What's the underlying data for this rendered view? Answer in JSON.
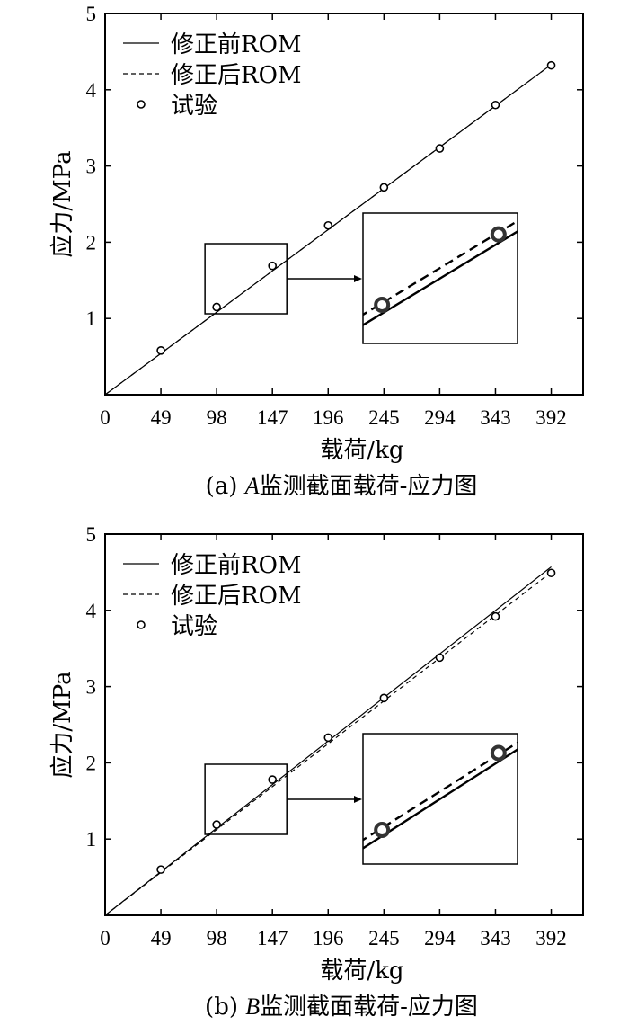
{
  "chart_data": [
    {
      "type": "line",
      "caption_prefix": "(a) ",
      "caption_letter": "A",
      "caption_rest": "监测截面载荷-应力图",
      "xlabel": "载荷/kg",
      "ylabel": "应力/MPa",
      "x_ticks": [
        0,
        49,
        98,
        147,
        196,
        245,
        294,
        343,
        392
      ],
      "y_ticks": [
        1,
        2,
        3,
        4,
        5
      ],
      "xlim": [
        0,
        420
      ],
      "ylim": [
        0,
        5
      ],
      "legend_position": "top-left",
      "series": [
        {
          "name": "修正前ROM",
          "style": "solid",
          "x": [
            0,
            392
          ],
          "y": [
            0,
            4.33
          ]
        },
        {
          "name": "修正后ROM",
          "style": "dashed",
          "x": [
            0,
            392
          ],
          "y": [
            0,
            4.33
          ]
        },
        {
          "name": "试验",
          "style": "marker",
          "x": [
            49,
            98,
            147,
            196,
            245,
            294,
            343,
            392
          ],
          "y": [
            0.58,
            1.15,
            1.69,
            2.22,
            2.72,
            3.23,
            3.8,
            4.32
          ]
        }
      ],
      "zoom": {
        "x_range": [
          98,
          147
        ]
      }
    },
    {
      "type": "line",
      "caption_prefix": "(b) ",
      "caption_letter": "B",
      "caption_rest": "监测截面载荷-应力图",
      "xlabel": "载荷/kg",
      "ylabel": "应力/MPa",
      "x_ticks": [
        0,
        49,
        98,
        147,
        196,
        245,
        294,
        343,
        392
      ],
      "y_ticks": [
        1,
        2,
        3,
        4,
        5
      ],
      "xlim": [
        0,
        420
      ],
      "ylim": [
        0,
        5
      ],
      "legend_position": "top-left",
      "series": [
        {
          "name": "修正前ROM",
          "style": "solid",
          "x": [
            0,
            392
          ],
          "y": [
            0,
            4.57
          ]
        },
        {
          "name": "修正后ROM",
          "style": "dashed",
          "x": [
            0,
            392
          ],
          "y": [
            0,
            4.5
          ]
        },
        {
          "name": "试验",
          "style": "marker",
          "x": [
            49,
            98,
            147,
            196,
            245,
            294,
            343,
            392
          ],
          "y": [
            0.6,
            1.19,
            1.78,
            2.33,
            2.85,
            3.38,
            3.92,
            4.49
          ]
        }
      ],
      "zoom": {
        "x_range": [
          98,
          147
        ]
      }
    }
  ]
}
